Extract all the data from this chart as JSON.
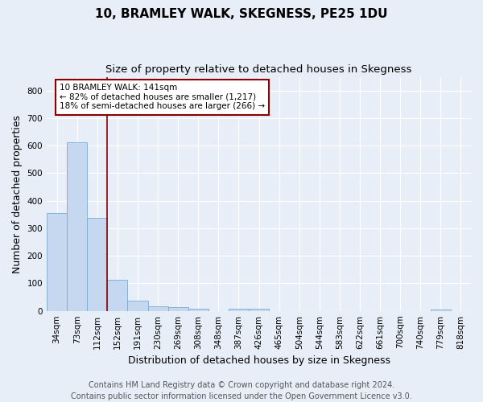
{
  "title": "10, BRAMLEY WALK, SKEGNESS, PE25 1DU",
  "subtitle": "Size of property relative to detached houses in Skegness",
  "xlabel": "Distribution of detached houses by size in Skegness",
  "ylabel": "Number of detached properties",
  "footer_line1": "Contains HM Land Registry data © Crown copyright and database right 2024.",
  "footer_line2": "Contains public sector information licensed under the Open Government Licence v3.0.",
  "categories": [
    "34sqm",
    "73sqm",
    "112sqm",
    "152sqm",
    "191sqm",
    "230sqm",
    "269sqm",
    "308sqm",
    "348sqm",
    "387sqm",
    "426sqm",
    "465sqm",
    "504sqm",
    "544sqm",
    "583sqm",
    "622sqm",
    "661sqm",
    "700sqm",
    "740sqm",
    "779sqm",
    "818sqm"
  ],
  "values": [
    355,
    613,
    338,
    113,
    38,
    18,
    13,
    7,
    0,
    8,
    8,
    0,
    0,
    0,
    0,
    0,
    0,
    0,
    0,
    6,
    0
  ],
  "bar_color": "#c5d8ef",
  "bar_edge_color": "#7aabcf",
  "property_line_x": 2.5,
  "property_line_color": "#8b0000",
  "annotation_line1": "10 BRAMLEY WALK: 141sqm",
  "annotation_line2": "← 82% of detached houses are smaller (1,217)",
  "annotation_line3": "18% of semi-detached houses are larger (266) →",
  "annotation_box_color": "white",
  "annotation_box_edge_color": "#8b0000",
  "ylim": [
    0,
    850
  ],
  "yticks": [
    0,
    100,
    200,
    300,
    400,
    500,
    600,
    700,
    800
  ],
  "background_color": "#e8eef7",
  "plot_background_color": "#e8eef7",
  "grid_color": "white",
  "title_fontsize": 11,
  "subtitle_fontsize": 9.5,
  "axis_label_fontsize": 9,
  "tick_fontsize": 7.5,
  "footer_fontsize": 7
}
